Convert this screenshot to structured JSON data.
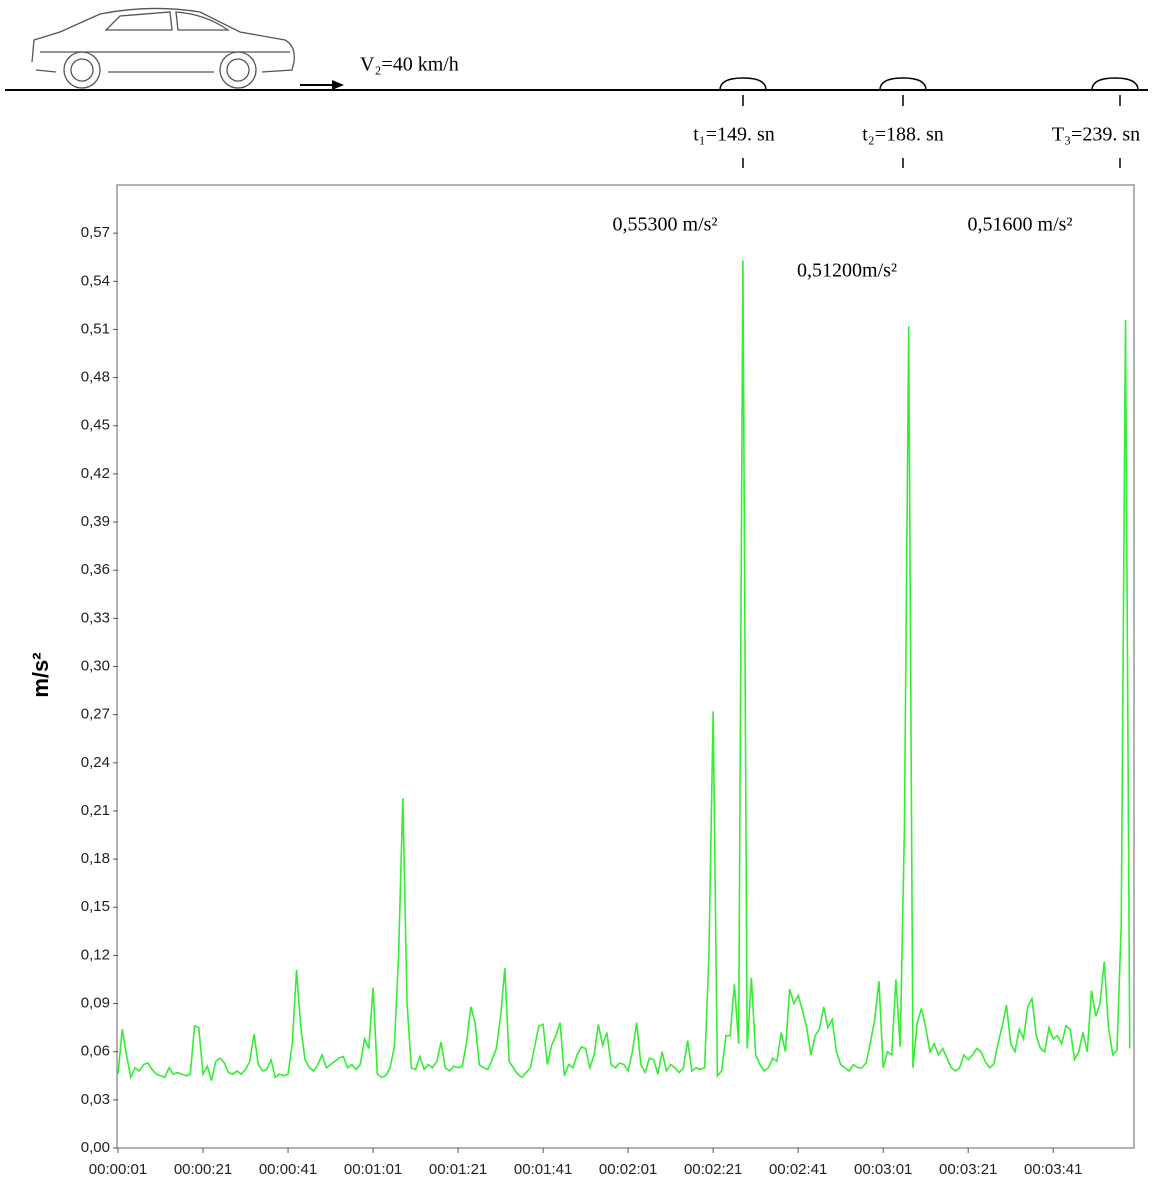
{
  "scene": {
    "speed": "V₂=40 km/h",
    "bumps": [
      "t₁=149. sn",
      "t₂=188. sn",
      "T₃=239. sn"
    ]
  },
  "chart_data": {
    "type": "line",
    "y_label": "m/s²",
    "annotations": [
      "0,55300 m/s²",
      "0,51200m/s²",
      "0,51600 m/s²"
    ],
    "xlim": [
      1,
      240
    ],
    "ylim": [
      0,
      0.6
    ],
    "xticks": [
      {
        "value": 1,
        "label": "00:00:01"
      },
      {
        "value": 21,
        "label": "00:00:21"
      },
      {
        "value": 41,
        "label": "00:00:41"
      },
      {
        "value": 61,
        "label": "00:01:01"
      },
      {
        "value": 81,
        "label": "00:01:21"
      },
      {
        "value": 101,
        "label": "00:01:41"
      },
      {
        "value": 121,
        "label": "00:02:01"
      },
      {
        "value": 141,
        "label": "00:02:21"
      },
      {
        "value": 161,
        "label": "00:02:41"
      },
      {
        "value": 181,
        "label": "00:03:01"
      },
      {
        "value": 201,
        "label": "00:03:21"
      },
      {
        "value": 221,
        "label": "00:03:41"
      }
    ],
    "yticks": [
      {
        "value": 0,
        "label": "0,00"
      },
      {
        "value": 0.03,
        "label": "0,03"
      },
      {
        "value": 0.06,
        "label": "0,06"
      },
      {
        "value": 0.09,
        "label": "0,09"
      },
      {
        "value": 0.12,
        "label": "0,12"
      },
      {
        "value": 0.15,
        "label": "0,15"
      },
      {
        "value": 0.18,
        "label": "0,18"
      },
      {
        "value": 0.21,
        "label": "0,21"
      },
      {
        "value": 0.24,
        "label": "0,24"
      },
      {
        "value": 0.27,
        "label": "0,27"
      },
      {
        "value": 0.3,
        "label": "0,30"
      },
      {
        "value": 0.33,
        "label": "0,33"
      },
      {
        "value": 0.36,
        "label": "0,36"
      },
      {
        "value": 0.39,
        "label": "0,39"
      },
      {
        "value": 0.42,
        "label": "0,42"
      },
      {
        "value": 0.45,
        "label": "0,45"
      },
      {
        "value": 0.48,
        "label": "0,48"
      },
      {
        "value": 0.51,
        "label": "0,51"
      },
      {
        "value": 0.54,
        "label": "0,54"
      },
      {
        "value": 0.57,
        "label": "0,57"
      }
    ],
    "color": "#33ee33",
    "x": [
      1,
      2,
      3,
      4,
      5,
      6,
      7,
      8,
      9,
      10,
      11,
      12,
      13,
      14,
      15,
      16,
      17,
      18,
      19,
      20,
      21,
      22,
      23,
      24,
      25,
      26,
      27,
      28,
      29,
      30,
      31,
      32,
      33,
      34,
      35,
      36,
      37,
      38,
      39,
      40,
      41,
      42,
      43,
      44,
      45,
      46,
      47,
      48,
      49,
      50,
      51,
      52,
      53,
      54,
      55,
      56,
      57,
      58,
      59,
      60,
      61,
      62,
      63,
      64,
      65,
      66,
      67,
      68,
      69,
      70,
      71,
      72,
      73,
      74,
      75,
      76,
      77,
      78,
      79,
      80,
      81,
      82,
      83,
      84,
      85,
      86,
      87,
      88,
      89,
      90,
      91,
      92,
      93,
      94,
      95,
      96,
      97,
      98,
      99,
      100,
      101,
      102,
      103,
      104,
      105,
      106,
      107,
      108,
      109,
      110,
      111,
      112,
      113,
      114,
      115,
      116,
      117,
      118,
      119,
      120,
      121,
      122,
      123,
      124,
      125,
      126,
      127,
      128,
      129,
      130,
      131,
      132,
      133,
      134,
      135,
      136,
      137,
      138,
      139,
      140,
      141,
      142,
      143,
      144,
      145,
      146,
      147,
      148,
      149,
      150,
      151,
      152,
      153,
      154,
      155,
      156,
      157,
      158,
      159,
      160,
      161,
      162,
      163,
      164,
      165,
      166,
      167,
      168,
      169,
      170,
      171,
      172,
      173,
      174,
      175,
      176,
      177,
      178,
      179,
      180,
      181,
      182,
      183,
      184,
      185,
      186,
      187,
      188,
      189,
      190,
      191,
      192,
      193,
      194,
      195,
      196,
      197,
      198,
      199,
      200,
      201,
      202,
      203,
      204,
      205,
      206,
      207,
      208,
      209,
      210,
      211,
      212,
      213,
      214,
      215,
      216,
      217,
      218,
      219,
      220,
      221,
      222,
      223,
      224,
      225,
      226,
      227,
      228,
      229,
      230,
      231,
      232,
      233,
      234,
      235,
      236,
      237,
      238,
      239
    ],
    "values": [
      0.046,
      0.074,
      0.058,
      0.044,
      0.05,
      0.048,
      0.052,
      0.053,
      0.049,
      0.046,
      0.045,
      0.044,
      0.05,
      0.046,
      0.047,
      0.046,
      0.045,
      0.046,
      0.076,
      0.075,
      0.046,
      0.051,
      0.042,
      0.054,
      0.056,
      0.053,
      0.047,
      0.046,
      0.048,
      0.046,
      0.049,
      0.054,
      0.071,
      0.052,
      0.048,
      0.049,
      0.055,
      0.044,
      0.046,
      0.045,
      0.046,
      0.065,
      0.111,
      0.075,
      0.055,
      0.05,
      0.048,
      0.052,
      0.058,
      0.05,
      0.052,
      0.054,
      0.056,
      0.057,
      0.05,
      0.052,
      0.049,
      0.052,
      0.068,
      0.062,
      0.1,
      0.046,
      0.044,
      0.045,
      0.05,
      0.063,
      0.12,
      0.218,
      0.09,
      0.05,
      0.049,
      0.057,
      0.049,
      0.052,
      0.05,
      0.054,
      0.066,
      0.05,
      0.048,
      0.051,
      0.05,
      0.051,
      0.066,
      0.088,
      0.078,
      0.052,
      0.05,
      0.049,
      0.055,
      0.062,
      0.082,
      0.112,
      0.054,
      0.05,
      0.046,
      0.044,
      0.047,
      0.05,
      0.063,
      0.076,
      0.077,
      0.052,
      0.064,
      0.07,
      0.078,
      0.045,
      0.052,
      0.05,
      0.058,
      0.063,
      0.062,
      0.05,
      0.058,
      0.077,
      0.064,
      0.072,
      0.052,
      0.05,
      0.053,
      0.052,
      0.048,
      0.06,
      0.078,
      0.052,
      0.047,
      0.056,
      0.055,
      0.046,
      0.06,
      0.048,
      0.052,
      0.05,
      0.047,
      0.05,
      0.067,
      0.048,
      0.05,
      0.049,
      0.05,
      0.12,
      0.272,
      0.045,
      0.048,
      0.07,
      0.07,
      0.102,
      0.065,
      0.553,
      0.062,
      0.106,
      0.058,
      0.052,
      0.048,
      0.05,
      0.056,
      0.054,
      0.072,
      0.06,
      0.099,
      0.09,
      0.095,
      0.086,
      0.075,
      0.058,
      0.07,
      0.074,
      0.088,
      0.075,
      0.08,
      0.06,
      0.052,
      0.05,
      0.048,
      0.052,
      0.05,
      0.05,
      0.053,
      0.066,
      0.08,
      0.104,
      0.05,
      0.06,
      0.058,
      0.105,
      0.063,
      0.2,
      0.512,
      0.05,
      0.078,
      0.087,
      0.075,
      0.06,
      0.065,
      0.058,
      0.062,
      0.056,
      0.05,
      0.048,
      0.05,
      0.058,
      0.055,
      0.058,
      0.062,
      0.06,
      0.054,
      0.05,
      0.052,
      0.065,
      0.076,
      0.089,
      0.065,
      0.06,
      0.074,
      0.068,
      0.088,
      0.093,
      0.07,
      0.062,
      0.06,
      0.075,
      0.068,
      0.07,
      0.065,
      0.076,
      0.074,
      0.055,
      0.06,
      0.072,
      0.06,
      0.098,
      0.082,
      0.09,
      0.116,
      0.075,
      0.058,
      0.061,
      0.14,
      0.516,
      0.062
    ]
  }
}
